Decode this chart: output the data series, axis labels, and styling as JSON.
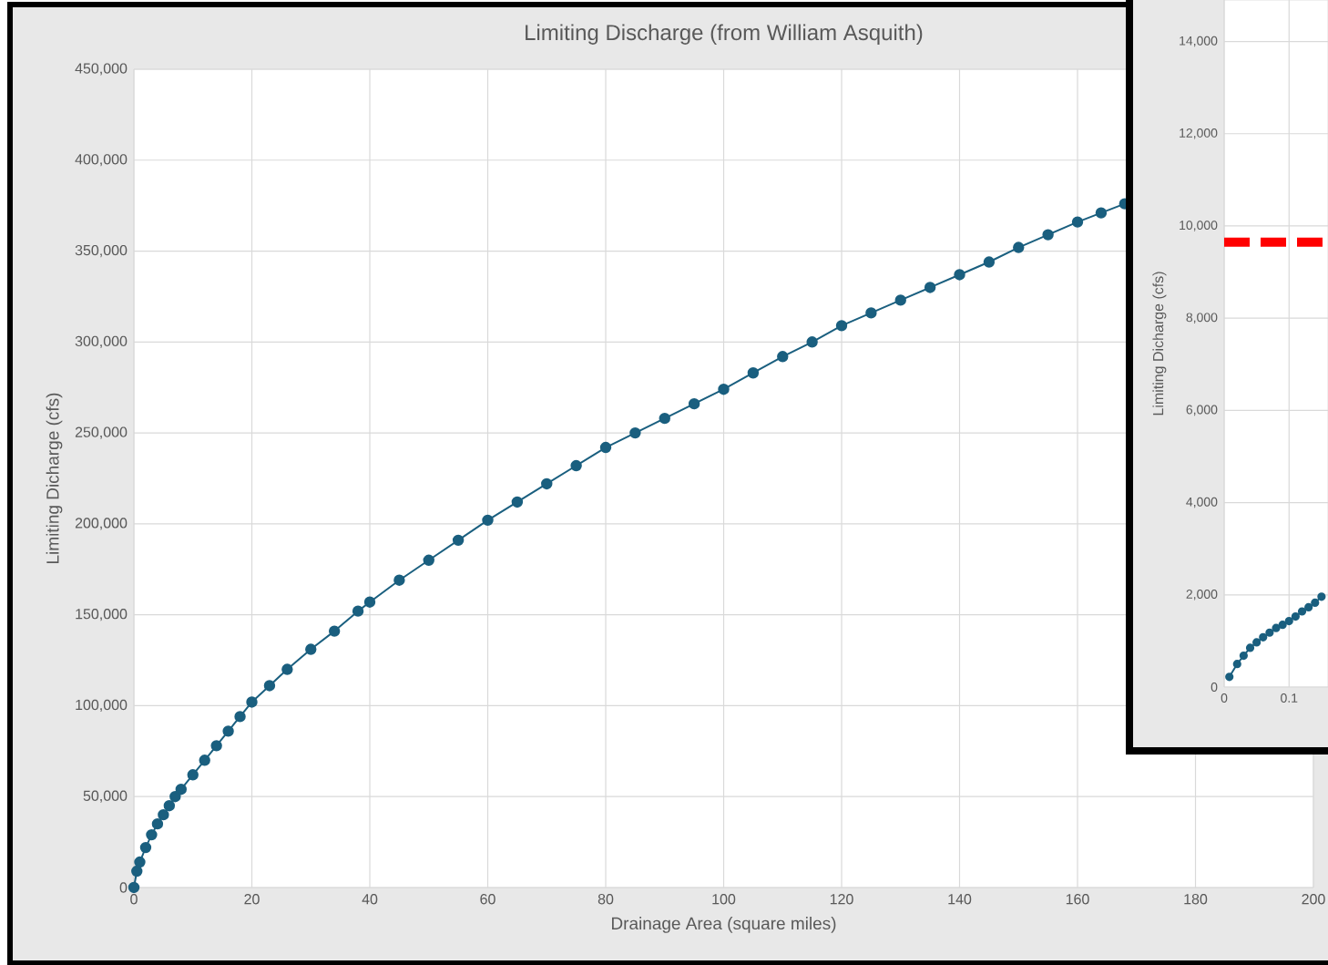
{
  "chart_data": [
    {
      "type": "line",
      "title": "Limiting Discharge (from William Asquith)",
      "xlabel": "Drainage Area (square miles)",
      "ylabel": "Limiting Dicharge (cfs)",
      "x": [
        0,
        0.5,
        1,
        2,
        3,
        4,
        5,
        6,
        7,
        8,
        10,
        12,
        14,
        16,
        18,
        20,
        23,
        26,
        30,
        34,
        38,
        40,
        45,
        50,
        55,
        60,
        65,
        70,
        75,
        80,
        85,
        90,
        95,
        100,
        105,
        110,
        115,
        120,
        125,
        130,
        135,
        140,
        145,
        150,
        155,
        160,
        164,
        168
      ],
      "series": [
        {
          "color": "#1a5f7f",
          "values": [
            0,
            9000,
            14000,
            22000,
            29000,
            35000,
            40000,
            45000,
            50000,
            54000,
            62000,
            70000,
            78000,
            86000,
            94000,
            102000,
            111000,
            120000,
            131000,
            141000,
            152000,
            157000,
            169000,
            180000,
            191000,
            202000,
            212000,
            222000,
            232000,
            242000,
            250000,
            258000,
            266000,
            274000,
            283000,
            292000,
            300000,
            309000,
            316000,
            323000,
            330000,
            337000,
            344000,
            352000,
            359000,
            366000,
            371000,
            376000
          ]
        }
      ],
      "xlim": [
        0,
        200
      ],
      "ylim": [
        0,
        450000
      ],
      "xticks": [
        0,
        20,
        40,
        60,
        80,
        100,
        120,
        140,
        160,
        180,
        200
      ],
      "yticks": [
        0,
        {
          "value": 50000,
          "label": "50,000"
        },
        {
          "value": 100000,
          "label": "100,000"
        },
        {
          "value": 150000,
          "label": "150,000"
        },
        {
          "value": 200000,
          "label": "200,000"
        },
        {
          "value": 250000,
          "label": "250,000"
        },
        {
          "value": 300000,
          "label": "300,000"
        },
        {
          "value": 350000,
          "label": "350,000"
        },
        {
          "value": 400000,
          "label": "400,000"
        },
        {
          "value": 450000,
          "label": "450,000"
        }
      ],
      "grid": true,
      "marker": "circle"
    },
    {
      "type": "line",
      "ylabel": "Limiting Dicharge (cfs)",
      "x": [
        0.008,
        0.02,
        0.03,
        0.04,
        0.05,
        0.06,
        0.07,
        0.08,
        0.09,
        0.1,
        0.11,
        0.12,
        0.13,
        0.14,
        0.15
      ],
      "series": [
        {
          "color": "#1a5f7f",
          "values": [
            220,
            500,
            680,
            850,
            970,
            1080,
            1180,
            1280,
            1350,
            1430,
            1530,
            1640,
            1730,
            1830,
            1960
          ]
        }
      ],
      "xlim": [
        0,
        0.16
      ],
      "ylim": [
        0,
        14900
      ],
      "xticks": [
        0,
        0.1
      ],
      "yticks": [
        0,
        {
          "value": 2000,
          "label": "2,000"
        },
        {
          "value": 4000,
          "label": "4,000"
        },
        {
          "value": 6000,
          "label": "6,000"
        },
        {
          "value": 8000,
          "label": "8,000"
        },
        {
          "value": 10000,
          "label": "10,000"
        },
        {
          "value": 12000,
          "label": "12,000"
        },
        {
          "value": 14000,
          "label": "14,000"
        }
      ],
      "ref_lines": [
        {
          "axis": "y",
          "value": 9650,
          "color": "#ff0000",
          "line_style": "dashed"
        }
      ],
      "grid": true,
      "marker": "circle"
    }
  ]
}
